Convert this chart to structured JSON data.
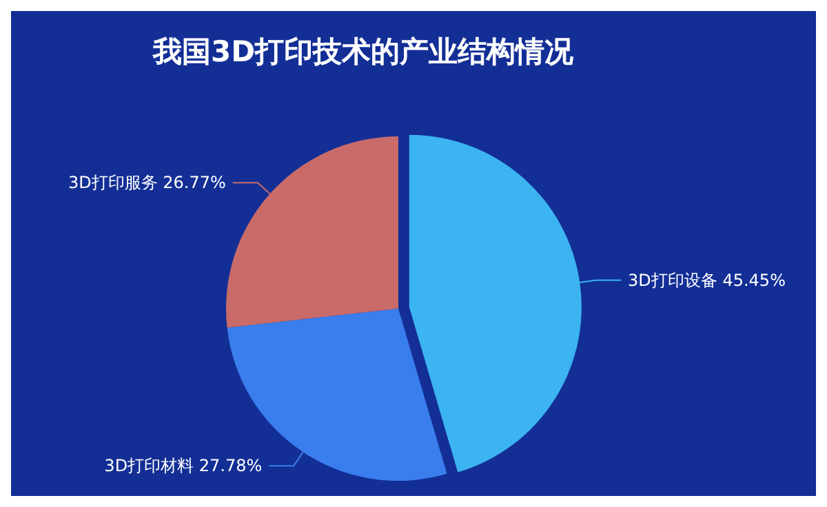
{
  "chart_data": {
    "type": "pie",
    "title": "我国3D打印技术的产业结构情况",
    "categories": [
      "3D打印设备",
      "3D打印材料",
      "3D打印服务"
    ],
    "values": [
      45.45,
      27.78,
      26.77
    ],
    "colors": [
      "#3cb4f2",
      "#3a7ded",
      "#c96b69"
    ],
    "value_labels": [
      "45.45%",
      "27.78%",
      "26.77%"
    ],
    "legend": false
  }
}
